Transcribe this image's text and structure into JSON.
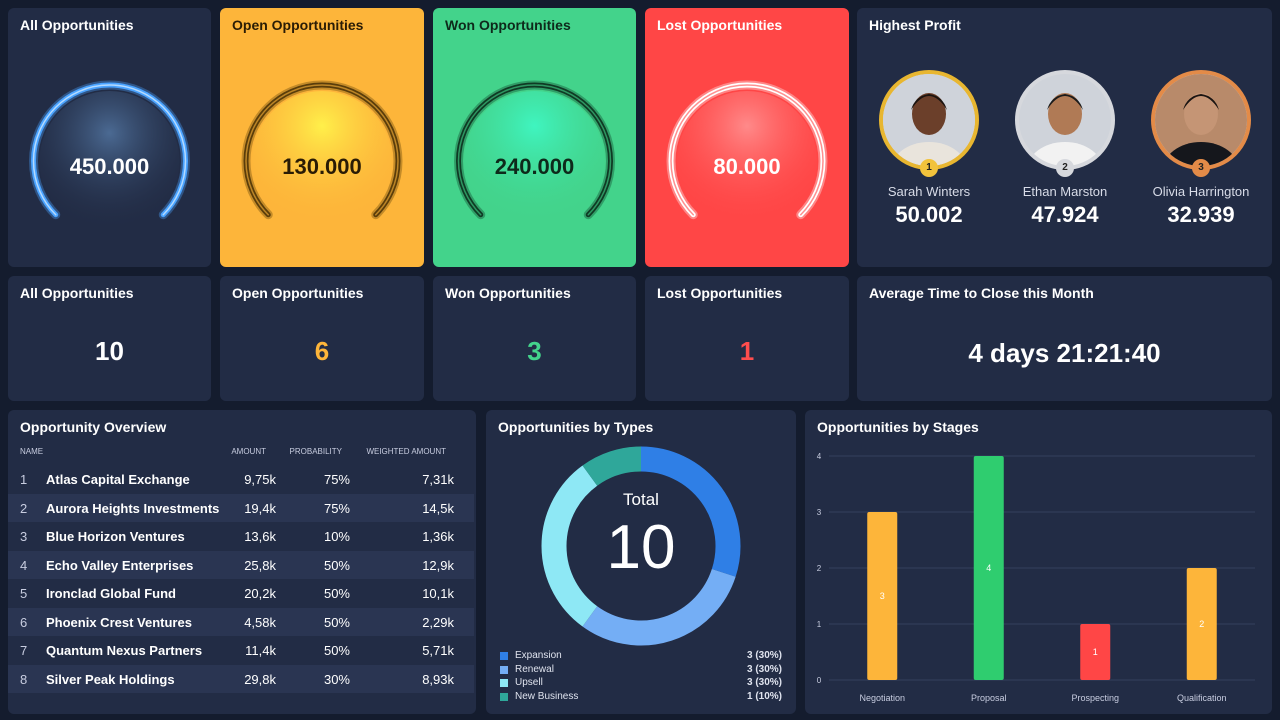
{
  "gauges": [
    {
      "title": "All Opportunities",
      "value": "450.000",
      "bg": "#222c45",
      "arc": "#4aa3ff",
      "text": "#ffffff"
    },
    {
      "title": "Open Opportunities",
      "value": "130.000",
      "bg": "#fdb53a",
      "arc": "#5a3d0a",
      "text": "#2a1c05"
    },
    {
      "title": "Won Opportunities",
      "value": "240.000",
      "bg": "#43d38b",
      "arc": "#0f3a24",
      "text": "#0e2a1b"
    },
    {
      "title": "Lost Opportunities",
      "value": "80.000",
      "bg": "#ff4646",
      "arc": "#ffffff",
      "text": "#ffffff"
    }
  ],
  "highest_profit": {
    "title": "Highest Profit",
    "people": [
      {
        "name": "Sarah Winters",
        "value": "50.002",
        "rank": "1",
        "ring": "#e8b630",
        "badge": "#f2c33c"
      },
      {
        "name": "Ethan Marston",
        "value": "47.924",
        "rank": "2",
        "ring": "#d6d8dd",
        "badge": "#d6d8dd"
      },
      {
        "name": "Olivia Harrington",
        "value": "32.939",
        "rank": "3",
        "ring": "#e38b48",
        "badge": "#e38b48"
      }
    ]
  },
  "counts": [
    {
      "title": "All Opportunities",
      "value": "10",
      "color": "#ffffff"
    },
    {
      "title": "Open Opportunities",
      "value": "6",
      "color": "#fdb53a"
    },
    {
      "title": "Won Opportunities",
      "value": "3",
      "color": "#43d38b"
    },
    {
      "title": "Lost Opportunities",
      "value": "1",
      "color": "#ff4d4d"
    }
  ],
  "avg_time": {
    "title": "Average Time to Close this Month",
    "value": "4 days 21:21:40"
  },
  "overview": {
    "title": "Opportunity Overview",
    "columns": [
      "NAME",
      "AMOUNT",
      "PROBABILITY",
      "WEIGHTED AMOUNT"
    ],
    "rows": [
      [
        "1",
        "Atlas Capital Exchange",
        "9,75k",
        "75%",
        "7,31k"
      ],
      [
        "2",
        "Aurora Heights Investments",
        "19,4k",
        "75%",
        "14,5k"
      ],
      [
        "3",
        "Blue Horizon Ventures",
        "13,6k",
        "10%",
        "1,36k"
      ],
      [
        "4",
        "Echo Valley Enterprises",
        "25,8k",
        "50%",
        "12,9k"
      ],
      [
        "5",
        "Ironclad Global Fund",
        "20,2k",
        "50%",
        "10,1k"
      ],
      [
        "6",
        "Phoenix Crest Ventures",
        "4,58k",
        "50%",
        "2,29k"
      ],
      [
        "7",
        "Quantum Nexus Partners",
        "11,4k",
        "50%",
        "5,71k"
      ],
      [
        "8",
        "Silver Peak Holdings",
        "29,8k",
        "30%",
        "8,93k"
      ]
    ]
  },
  "types": {
    "title": "Opportunities by Types",
    "total_label": "Total",
    "total_value": "10",
    "segments": [
      {
        "name": "Expansion",
        "value": 3,
        "label": "3 (30%)",
        "color": "#2f7fe6"
      },
      {
        "name": "Renewal",
        "value": 3,
        "label": "3 (30%)",
        "color": "#74aef5"
      },
      {
        "name": "Upsell",
        "value": 3,
        "label": "3 (30%)",
        "color": "#8ee8f5"
      },
      {
        "name": "New Business",
        "value": 1,
        "label": "1 (10%)",
        "color": "#2fa79a"
      }
    ]
  },
  "chart_data": {
    "type": "bar",
    "title": "Opportunities by Stages",
    "categories": [
      "Negotiation",
      "Proposal",
      "Prospecting",
      "Qualification"
    ],
    "values": [
      3,
      4,
      1,
      2
    ],
    "colors": [
      "#fdb53a",
      "#2fcd6f",
      "#ff4646",
      "#fdb53a"
    ],
    "ylim": [
      0,
      4
    ],
    "yticks": [
      "0",
      "1",
      "2",
      "3",
      "4"
    ],
    "grid": true
  }
}
